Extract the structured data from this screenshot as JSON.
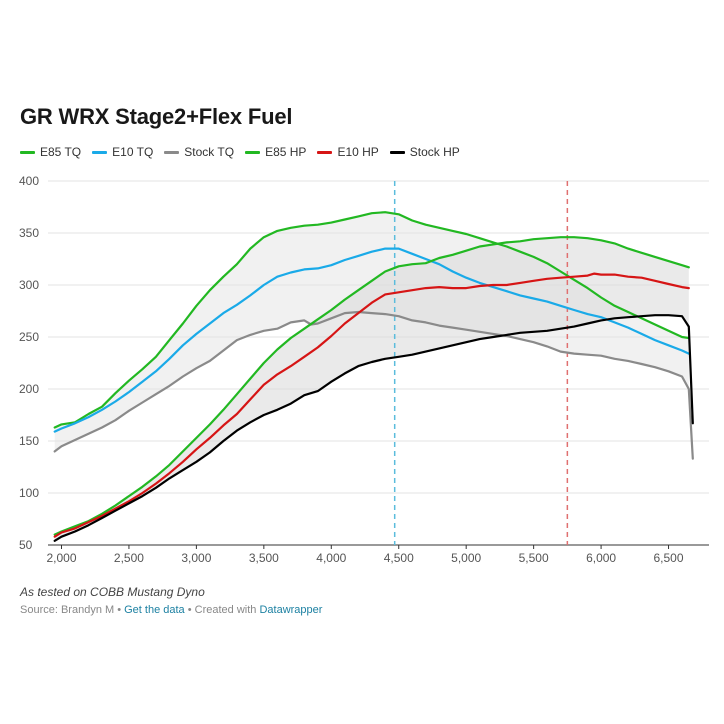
{
  "chart_data": {
    "type": "line",
    "title": "GR WRX Stage2+Flex Fuel",
    "xlabel": "",
    "ylabel": "",
    "xlim": [
      1900,
      6800
    ],
    "ylim": [
      50,
      400
    ],
    "xticks": [
      2000,
      2500,
      3000,
      3500,
      4000,
      4500,
      5000,
      5500,
      6000,
      6500
    ],
    "xtick_labels": [
      "2,000",
      "2,500",
      "3,000",
      "3,500",
      "4,000",
      "4,500",
      "5,000",
      "5,500",
      "6,000",
      "6,500"
    ],
    "yticks": [
      50,
      100,
      150,
      200,
      250,
      300,
      350,
      400
    ],
    "ytick_labels": [
      "50",
      "100",
      "150",
      "200",
      "250",
      "300",
      "350",
      "400"
    ],
    "grid": true,
    "legend_position": "top-left",
    "series": [
      {
        "name": "E85 TQ",
        "color": "#22b822",
        "x": [
          1950,
          2000,
          2100,
          2200,
          2300,
          2400,
          2500,
          2600,
          2700,
          2800,
          2900,
          3000,
          3100,
          3200,
          3300,
          3400,
          3500,
          3600,
          3700,
          3800,
          3900,
          4000,
          4100,
          4200,
          4300,
          4400,
          4500,
          4600,
          4700,
          4800,
          4900,
          5000,
          5100,
          5200,
          5300,
          5400,
          5500,
          5600,
          5700,
          5800,
          5900,
          6000,
          6100,
          6200,
          6300,
          6400,
          6500,
          6600,
          6650
        ],
        "y": [
          163,
          166,
          168,
          176,
          183,
          196,
          208,
          219,
          231,
          247,
          263,
          280,
          295,
          308,
          320,
          335,
          346,
          352,
          355,
          357,
          358,
          360,
          363,
          366,
          369,
          370,
          368,
          362,
          358,
          355,
          352,
          349,
          345,
          341,
          337,
          332,
          327,
          321,
          313,
          305,
          297,
          288,
          280,
          274,
          268,
          262,
          256,
          250,
          249
        ]
      },
      {
        "name": "E10 TQ",
        "color": "#1aaae8",
        "x": [
          1950,
          2000,
          2100,
          2200,
          2300,
          2400,
          2500,
          2600,
          2700,
          2800,
          2900,
          3000,
          3100,
          3200,
          3300,
          3400,
          3500,
          3600,
          3700,
          3800,
          3900,
          4000,
          4100,
          4200,
          4300,
          4400,
          4500,
          4600,
          4700,
          4800,
          4900,
          5000,
          5100,
          5200,
          5300,
          5400,
          5500,
          5600,
          5700,
          5800,
          5900,
          6000,
          6100,
          6200,
          6300,
          6400,
          6500,
          6600,
          6650
        ],
        "y": [
          159,
          162,
          167,
          173,
          180,
          188,
          197,
          207,
          217,
          229,
          242,
          253,
          263,
          273,
          281,
          290,
          300,
          308,
          312,
          315,
          316,
          319,
          324,
          328,
          332,
          335,
          335,
          330,
          325,
          320,
          313,
          307,
          302,
          298,
          294,
          290,
          287,
          284,
          280,
          276,
          272,
          269,
          264,
          259,
          253,
          247,
          242,
          237,
          234
        ]
      },
      {
        "name": "Stock TQ",
        "color": "#8a8a8a",
        "x": [
          1950,
          2000,
          2100,
          2200,
          2300,
          2400,
          2500,
          2600,
          2700,
          2800,
          2900,
          3000,
          3100,
          3200,
          3300,
          3400,
          3500,
          3600,
          3700,
          3800,
          3850,
          3900,
          4000,
          4100,
          4200,
          4300,
          4400,
          4500,
          4600,
          4700,
          4800,
          4900,
          5000,
          5100,
          5200,
          5300,
          5400,
          5500,
          5600,
          5700,
          5800,
          5900,
          6000,
          6100,
          6200,
          6300,
          6400,
          6500,
          6600,
          6650,
          6680
        ],
        "y": [
          140,
          145,
          151,
          157,
          163,
          170,
          179,
          187,
          195,
          203,
          212,
          220,
          227,
          237,
          247,
          252,
          256,
          258,
          264,
          266,
          262,
          263,
          268,
          273,
          274,
          273,
          272,
          270,
          266,
          264,
          261,
          259,
          257,
          255,
          253,
          251,
          248,
          245,
          241,
          236,
          234,
          233,
          232,
          229,
          227,
          224,
          221,
          217,
          212,
          200,
          133
        ]
      },
      {
        "name": "E85 HP",
        "color": "#22b822",
        "x": [
          1950,
          2000,
          2100,
          2200,
          2300,
          2400,
          2500,
          2600,
          2700,
          2800,
          2900,
          3000,
          3100,
          3200,
          3300,
          3400,
          3500,
          3600,
          3700,
          3800,
          3900,
          4000,
          4100,
          4200,
          4300,
          4400,
          4500,
          4600,
          4700,
          4800,
          4900,
          5000,
          5100,
          5200,
          5300,
          5400,
          5500,
          5600,
          5700,
          5800,
          5900,
          6000,
          6100,
          6200,
          6300,
          6400,
          6500,
          6600,
          6650
        ],
        "y": [
          60,
          63,
          68,
          73,
          80,
          88,
          97,
          106,
          116,
          127,
          140,
          153,
          166,
          180,
          195,
          210,
          225,
          238,
          249,
          258,
          267,
          276,
          286,
          295,
          304,
          313,
          318,
          320,
          321,
          326,
          329,
          333,
          337,
          339,
          341,
          342,
          344,
          345,
          346,
          346,
          345,
          343,
          340,
          335,
          331,
          327,
          323,
          319,
          317
        ]
      },
      {
        "name": "E10 HP",
        "color": "#d61515",
        "x": [
          1950,
          2000,
          2100,
          2200,
          2300,
          2400,
          2500,
          2600,
          2700,
          2800,
          2900,
          3000,
          3100,
          3200,
          3300,
          3400,
          3500,
          3600,
          3700,
          3800,
          3900,
          4000,
          4100,
          4200,
          4300,
          4400,
          4500,
          4600,
          4700,
          4800,
          4900,
          5000,
          5100,
          5200,
          5300,
          5400,
          5500,
          5600,
          5700,
          5800,
          5900,
          5950,
          6000,
          6100,
          6200,
          6300,
          6400,
          6500,
          6600,
          6650
        ],
        "y": [
          58,
          62,
          66,
          72,
          78,
          85,
          92,
          100,
          109,
          119,
          130,
          142,
          153,
          165,
          176,
          190,
          204,
          214,
          222,
          231,
          240,
          251,
          263,
          273,
          283,
          291,
          293,
          295,
          297,
          298,
          297,
          297,
          299,
          300,
          300,
          302,
          304,
          306,
          307,
          308,
          309,
          311,
          310,
          310,
          308,
          307,
          304,
          301,
          298,
          297
        ]
      },
      {
        "name": "Stock HP",
        "color": "#000000",
        "x": [
          1950,
          2000,
          2100,
          2200,
          2300,
          2400,
          2500,
          2600,
          2700,
          2800,
          2900,
          3000,
          3100,
          3200,
          3300,
          3400,
          3500,
          3600,
          3700,
          3800,
          3900,
          4000,
          4100,
          4200,
          4300,
          4400,
          4500,
          4600,
          4700,
          4800,
          4900,
          5000,
          5100,
          5200,
          5300,
          5400,
          5500,
          5600,
          5700,
          5800,
          5900,
          6000,
          6100,
          6200,
          6300,
          6400,
          6500,
          6600,
          6650,
          6680
        ],
        "y": [
          54,
          58,
          63,
          69,
          76,
          83,
          90,
          97,
          105,
          114,
          122,
          130,
          139,
          150,
          160,
          168,
          175,
          180,
          186,
          194,
          198,
          207,
          215,
          222,
          226,
          229,
          231,
          233,
          236,
          239,
          242,
          245,
          248,
          250,
          252,
          254,
          255,
          256,
          258,
          260,
          263,
          266,
          268,
          269,
          270,
          271,
          271,
          270,
          260,
          167
        ]
      }
    ],
    "reference_lines": [
      {
        "x": 4470,
        "color": "#5bbcdc"
      },
      {
        "x": 5750,
        "color": "#e07070"
      }
    ],
    "shaded_ranges": [
      {
        "upper": "E85 TQ",
        "lower": "Stock TQ",
        "color": "#e6e6e6"
      },
      {
        "upper": "E85 HP",
        "lower": "Stock HP",
        "color": "#d9d9d9"
      }
    ]
  },
  "legend": [
    {
      "label": "E85 TQ",
      "color": "#22b822"
    },
    {
      "label": "E10 TQ",
      "color": "#1aaae8"
    },
    {
      "label": "Stock TQ",
      "color": "#8a8a8a"
    },
    {
      "label": "E85 HP",
      "color": "#22b822"
    },
    {
      "label": "E10 HP",
      "color": "#d61515"
    },
    {
      "label": "Stock HP",
      "color": "#000000"
    }
  ],
  "notes": "As tested on COBB Mustang Dyno",
  "footer": {
    "source": "Source: Brandyn M",
    "sep1": " • ",
    "data_link": "Get the data",
    "sep2": " • Created with ",
    "tool_link": "Datawrapper"
  }
}
